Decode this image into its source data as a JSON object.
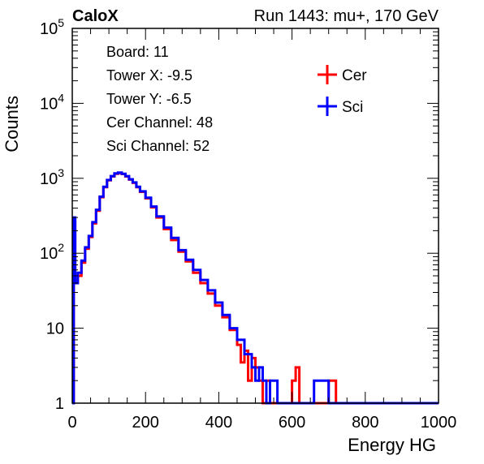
{
  "header": {
    "left": "CaloX",
    "right": "Run 1443: mu+, 170 GeV"
  },
  "info": [
    "Board: 11",
    "Tower X: -9.5",
    "Tower Y: -6.5",
    "Cer Channel: 48",
    "Sci Channel: 52"
  ],
  "chart_data": {
    "type": "line",
    "title": "",
    "xlabel": "Energy HG",
    "ylabel": "Counts",
    "xlim": [
      0,
      1000
    ],
    "ylim": [
      1,
      100000
    ],
    "yscale": "log",
    "x_ticks": [
      {
        "value": 0,
        "label": "0"
      },
      {
        "value": 200,
        "label": "200"
      },
      {
        "value": 400,
        "label": "400"
      },
      {
        "value": 600,
        "label": "600"
      },
      {
        "value": 800,
        "label": "800"
      },
      {
        "value": 1000,
        "label": "1000"
      }
    ],
    "y_ticks": [
      {
        "value": 1,
        "label": "1",
        "sup": ""
      },
      {
        "value": 10,
        "label": "10",
        "sup": ""
      },
      {
        "value": 100,
        "label": "10",
        "sup": "2"
      },
      {
        "value": 1000,
        "label": "10",
        "sup": "3"
      },
      {
        "value": 10000,
        "label": "10",
        "sup": "4"
      },
      {
        "value": 100000,
        "label": "10",
        "sup": "5"
      }
    ],
    "legend_position": "top-right",
    "series": [
      {
        "name": "Cer",
        "color": "#ff0000",
        "x": [
          0,
          4,
          8,
          15,
          25,
          35,
          45,
          55,
          65,
          75,
          85,
          95,
          105,
          115,
          125,
          135,
          145,
          155,
          165,
          175,
          185,
          200,
          215,
          230,
          250,
          270,
          290,
          310,
          330,
          350,
          370,
          390,
          410,
          430,
          450,
          460,
          470,
          480,
          490,
          500,
          510,
          520,
          530,
          540,
          560,
          580,
          600,
          610,
          620,
          640,
          660,
          680,
          700,
          720,
          760,
          800,
          900,
          1000
        ],
        "y": [
          1,
          260,
          40,
          50,
          75,
          115,
          165,
          250,
          370,
          560,
          760,
          940,
          1060,
          1150,
          1180,
          1140,
          1060,
          960,
          870,
          760,
          660,
          540,
          410,
          300,
          210,
          150,
          105,
          78,
          55,
          40,
          29,
          20,
          14,
          9.5,
          6,
          3.5,
          5,
          2,
          4,
          3,
          2,
          1,
          2,
          1,
          1,
          1,
          2,
          3,
          1,
          1,
          1,
          1,
          2,
          1,
          1,
          1,
          1,
          1
        ]
      },
      {
        "name": "Sci",
        "color": "#0000ff",
        "x": [
          0,
          4,
          8,
          15,
          25,
          35,
          45,
          55,
          65,
          75,
          85,
          95,
          105,
          115,
          125,
          135,
          145,
          155,
          165,
          175,
          185,
          200,
          215,
          230,
          250,
          270,
          290,
          310,
          330,
          350,
          370,
          390,
          410,
          430,
          450,
          470,
          490,
          500,
          510,
          520,
          530,
          540,
          560,
          580,
          620,
          660,
          700,
          720,
          760,
          800,
          900,
          1000
        ],
        "y": [
          1,
          300,
          40,
          55,
          80,
          120,
          170,
          260,
          380,
          570,
          770,
          950,
          1070,
          1160,
          1190,
          1150,
          1070,
          970,
          880,
          770,
          670,
          550,
          420,
          310,
          220,
          160,
          110,
          82,
          60,
          44,
          32,
          22,
          15,
          10,
          7,
          4.5,
          3,
          2,
          3,
          2,
          1,
          2,
          1,
          1,
          1,
          2,
          1,
          1,
          1,
          1,
          1,
          1
        ]
      }
    ]
  }
}
